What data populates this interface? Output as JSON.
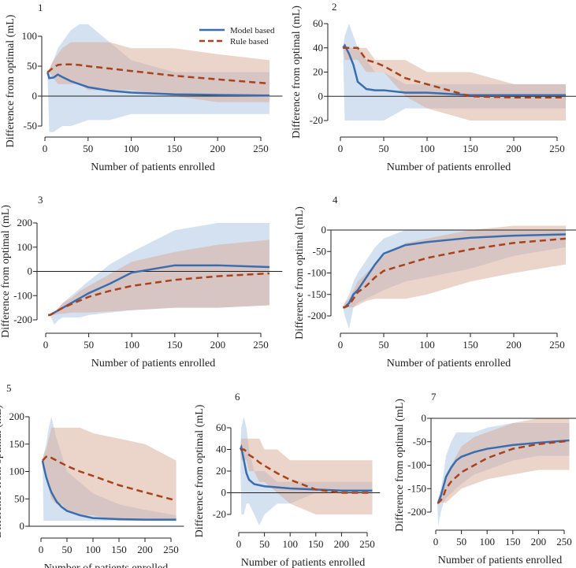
{
  "legend": {
    "model": "Model based",
    "rule": "Rule based"
  },
  "colors": {
    "model_line": "#3a6db0",
    "rule_line": "#a8421c",
    "model_band": "#a9c3e2",
    "rule_band": "#d8a995"
  },
  "chart_data": [
    {
      "type": "line",
      "panel_label": "1",
      "xlabel": "Number of patients enrolled",
      "ylabel": "Difference from optimal (mL)",
      "xlim": [
        0,
        260
      ],
      "ylim": [
        -60,
        120
      ],
      "xticks": [
        "0",
        "50",
        "100",
        "150",
        "200",
        "250"
      ],
      "yticks": [
        "-50",
        "0",
        "50",
        "100"
      ],
      "ytick_values": [
        -50,
        0,
        50,
        100
      ],
      "x": [
        3,
        5,
        10,
        15,
        20,
        30,
        40,
        50,
        75,
        100,
        150,
        200,
        260
      ],
      "series": [
        {
          "name": "Model based",
          "values": [
            40,
            30,
            31,
            36,
            32,
            25,
            20,
            15,
            9,
            6,
            3,
            2,
            1
          ],
          "band_low": [
            40,
            -60,
            -60,
            -55,
            -50,
            -50,
            -45,
            -40,
            -40,
            -30,
            -30,
            -30,
            -30
          ],
          "band_high": [
            40,
            45,
            60,
            80,
            90,
            110,
            120,
            120,
            90,
            60,
            40,
            40,
            40
          ]
        },
        {
          "name": "Rule based",
          "values": [
            40,
            42,
            48,
            52,
            53,
            53,
            52,
            50,
            46,
            42,
            34,
            28,
            21
          ],
          "band_low": [
            40,
            40,
            30,
            20,
            20,
            20,
            20,
            10,
            10,
            10,
            0,
            -10,
            -10
          ],
          "band_high": [
            40,
            45,
            60,
            70,
            80,
            90,
            90,
            90,
            90,
            80,
            80,
            70,
            60
          ]
        }
      ]
    },
    {
      "type": "line",
      "panel_label": "2",
      "xlabel": "Number of patients enrolled",
      "ylabel": "Difference from optimal (mL)",
      "xlim": [
        0,
        260
      ],
      "ylim": [
        -30,
        60
      ],
      "xticks": [
        "0",
        "50",
        "100",
        "150",
        "200",
        "250"
      ],
      "yticks": [
        "-20",
        "0",
        "20",
        "40",
        "60"
      ],
      "ytick_values": [
        -20,
        0,
        20,
        40,
        60
      ],
      "x": [
        3,
        5,
        10,
        15,
        20,
        30,
        40,
        50,
        75,
        100,
        150,
        200,
        260
      ],
      "series": [
        {
          "name": "Model based",
          "values": [
            40,
            42,
            35,
            26,
            12,
            6,
            5,
            5,
            3,
            3,
            1,
            1,
            1
          ],
          "band_low": [
            40,
            -20,
            -20,
            -20,
            -20,
            -20,
            -20,
            -20,
            -10,
            -10,
            -10,
            -10,
            -10
          ],
          "band_high": [
            40,
            50,
            60,
            50,
            40,
            30,
            20,
            20,
            10,
            10,
            10,
            10,
            10
          ]
        },
        {
          "name": "Rule based",
          "values": [
            40,
            40,
            40,
            40,
            40,
            30,
            28,
            25,
            15,
            10,
            0,
            -1,
            -1
          ],
          "band_low": [
            40,
            30,
            30,
            30,
            30,
            20,
            20,
            20,
            0,
            -10,
            -20,
            -20,
            -20
          ],
          "band_high": [
            40,
            40,
            40,
            40,
            40,
            40,
            30,
            30,
            30,
            20,
            20,
            10,
            10
          ]
        }
      ]
    },
    {
      "type": "line",
      "panel_label": "3",
      "xlabel": "Number of patients enrolled",
      "ylabel": "Difference from optimal (mL)",
      "xlim": [
        0,
        260
      ],
      "ylim": [
        -230,
        210
      ],
      "xticks": [
        "0",
        "50",
        "100",
        "150",
        "200",
        "250"
      ],
      "yticks": [
        "-200",
        "-100",
        "0",
        "100",
        "200"
      ],
      "ytick_values": [
        -200,
        -100,
        0,
        100,
        200
      ],
      "x": [
        3,
        5,
        10,
        15,
        20,
        30,
        40,
        50,
        75,
        100,
        150,
        200,
        260
      ],
      "series": [
        {
          "name": "Model based",
          "values": [
            -180,
            -180,
            -170,
            -160,
            -150,
            -130,
            -110,
            -90,
            -50,
            -5,
            25,
            25,
            18
          ],
          "band_low": [
            -180,
            -180,
            -220,
            -200,
            -190,
            -190,
            -190,
            -180,
            -170,
            -160,
            -150,
            -150,
            -140
          ],
          "band_high": [
            -180,
            -180,
            -170,
            -150,
            -130,
            -100,
            -70,
            -40,
            30,
            80,
            170,
            200,
            200
          ]
        },
        {
          "name": "Rule based",
          "values": [
            -180,
            -180,
            -170,
            -160,
            -150,
            -135,
            -120,
            -105,
            -80,
            -60,
            -35,
            -20,
            -8
          ],
          "band_low": [
            -180,
            -180,
            -180,
            -175,
            -175,
            -170,
            -170,
            -170,
            -165,
            -160,
            -150,
            -150,
            -140
          ],
          "band_high": [
            -180,
            -180,
            -170,
            -150,
            -130,
            -110,
            -80,
            -60,
            -10,
            40,
            80,
            110,
            130
          ]
        }
      ]
    },
    {
      "type": "line",
      "panel_label": "4",
      "xlabel": "Number of patients enrolled",
      "ylabel": "Difference from optimal (mL)",
      "xlim": [
        0,
        260
      ],
      "ylim": [
        -230,
        10
      ],
      "xticks": [
        "0",
        "50",
        "100",
        "150",
        "200",
        "250"
      ],
      "yticks": [
        "-200",
        "-150",
        "-100",
        "-50",
        "0"
      ],
      "ytick_values": [
        -200,
        -150,
        -100,
        -50,
        0
      ],
      "x": [
        3,
        5,
        10,
        15,
        20,
        30,
        40,
        50,
        75,
        100,
        150,
        200,
        260
      ],
      "series": [
        {
          "name": "Model based",
          "values": [
            -180,
            -180,
            -170,
            -150,
            -140,
            -110,
            -80,
            -55,
            -35,
            -28,
            -18,
            -13,
            -10
          ],
          "band_low": [
            -180,
            -200,
            -230,
            -180,
            -170,
            -160,
            -150,
            -140,
            -120,
            -110,
            -90,
            -60,
            -40
          ],
          "band_high": [
            -180,
            -170,
            -150,
            -120,
            -100,
            -70,
            -40,
            -20,
            0,
            0,
            0,
            0,
            0
          ]
        },
        {
          "name": "Rule based",
          "values": [
            -180,
            -180,
            -175,
            -160,
            -145,
            -130,
            -110,
            -95,
            -80,
            -65,
            -45,
            -30,
            -20
          ],
          "band_low": [
            -180,
            -180,
            -180,
            -180,
            -175,
            -165,
            -160,
            -160,
            -160,
            -150,
            -120,
            -100,
            -80
          ],
          "band_high": [
            -180,
            -170,
            -160,
            -140,
            -120,
            -100,
            -80,
            -60,
            -30,
            -20,
            0,
            10,
            10
          ]
        }
      ]
    },
    {
      "type": "line",
      "panel_label": "5",
      "xlabel": "Number of patients enrolled",
      "ylabel": "Difference from optimal (mL)",
      "xlim": [
        0,
        260
      ],
      "ylim": [
        0,
        200
      ],
      "xticks": [
        "0",
        "50",
        "100",
        "150",
        "200",
        "250"
      ],
      "yticks": [
        "0",
        "50",
        "100",
        "150",
        "200"
      ],
      "ytick_values": [
        0,
        50,
        100,
        150,
        200
      ],
      "x": [
        3,
        5,
        10,
        15,
        20,
        30,
        40,
        50,
        75,
        100,
        150,
        200,
        260
      ],
      "series": [
        {
          "name": "Model based",
          "values": [
            120,
            110,
            90,
            75,
            62,
            45,
            35,
            28,
            20,
            15,
            13,
            12,
            12
          ],
          "band_low": [
            120,
            10,
            10,
            10,
            10,
            10,
            10,
            10,
            10,
            10,
            10,
            10,
            10
          ],
          "band_high": [
            120,
            130,
            150,
            180,
            200,
            160,
            130,
            100,
            80,
            60,
            40,
            30,
            20
          ]
        },
        {
          "name": "Rule based",
          "values": [
            120,
            122,
            127,
            128,
            125,
            120,
            115,
            110,
            100,
            92,
            75,
            62,
            47
          ],
          "band_low": [
            120,
            110,
            100,
            70,
            50,
            40,
            40,
            30,
            20,
            20,
            10,
            10,
            10
          ],
          "band_high": [
            120,
            130,
            140,
            160,
            180,
            180,
            180,
            180,
            180,
            170,
            160,
            150,
            120
          ]
        }
      ]
    },
    {
      "type": "line",
      "panel_label": "6",
      "xlabel": "Number of patients enrolled",
      "ylabel": "Difference from optimal (mL)",
      "xlim": [
        0,
        260
      ],
      "ylim": [
        -30,
        70
      ],
      "xticks": [
        "0",
        "50",
        "100",
        "150",
        "200",
        "250"
      ],
      "yticks": [
        "-20",
        "0",
        "20",
        "40",
        "60"
      ],
      "ytick_values": [
        -20,
        0,
        20,
        40,
        60
      ],
      "x": [
        3,
        5,
        10,
        15,
        20,
        30,
        40,
        50,
        75,
        100,
        150,
        200,
        260
      ],
      "series": [
        {
          "name": "Model based",
          "values": [
            40,
            42,
            30,
            18,
            12,
            8,
            7,
            6,
            5,
            4,
            3,
            2,
            2
          ],
          "band_low": [
            40,
            -20,
            -20,
            -10,
            -10,
            -20,
            -30,
            -20,
            -10,
            -10,
            0,
            0,
            0
          ],
          "band_high": [
            40,
            60,
            70,
            60,
            40,
            20,
            20,
            20,
            10,
            10,
            10,
            10,
            10
          ]
        },
        {
          "name": "Rule based",
          "values": [
            40,
            40,
            40,
            38,
            35,
            32,
            28,
            25,
            18,
            12,
            3,
            0,
            0
          ],
          "band_low": [
            40,
            30,
            30,
            30,
            20,
            20,
            10,
            10,
            0,
            -10,
            -20,
            -20,
            -20
          ],
          "band_high": [
            40,
            50,
            50,
            50,
            50,
            50,
            50,
            40,
            40,
            30,
            30,
            30,
            30
          ]
        }
      ]
    },
    {
      "type": "line",
      "panel_label": "7",
      "xlabel": "Number of patients enrolled",
      "ylabel": "Difference from optimal (mL)",
      "xlim": [
        0,
        260
      ],
      "ylim": [
        -230,
        10
      ],
      "xticks": [
        "0",
        "50",
        "100",
        "150",
        "200",
        "250"
      ],
      "yticks": [
        "-200",
        "-150",
        "-100",
        "-50",
        "0"
      ],
      "ytick_values": [
        -200,
        -150,
        -100,
        -50,
        0
      ],
      "x": [
        3,
        5,
        10,
        15,
        20,
        30,
        40,
        50,
        75,
        100,
        150,
        200,
        260
      ],
      "series": [
        {
          "name": "Model based",
          "values": [
            -180,
            -180,
            -165,
            -145,
            -125,
            -105,
            -90,
            -82,
            -72,
            -65,
            -57,
            -52,
            -47
          ],
          "band_low": [
            -180,
            -230,
            -200,
            -180,
            -170,
            -160,
            -150,
            -140,
            -120,
            -110,
            -90,
            -80,
            -80
          ],
          "band_high": [
            -180,
            -170,
            -150,
            -120,
            -80,
            -50,
            -30,
            -30,
            -30,
            -20,
            -10,
            -10,
            -10
          ]
        },
        {
          "name": "Rule based",
          "values": [
            -180,
            -180,
            -175,
            -165,
            -150,
            -135,
            -125,
            -115,
            -100,
            -85,
            -65,
            -55,
            -48
          ],
          "band_low": [
            -180,
            -180,
            -180,
            -180,
            -180,
            -170,
            -160,
            -150,
            -140,
            -130,
            -120,
            -110,
            -110
          ],
          "band_high": [
            -180,
            -170,
            -160,
            -140,
            -120,
            -100,
            -80,
            -60,
            -40,
            -30,
            -10,
            0,
            0
          ]
        }
      ]
    }
  ]
}
